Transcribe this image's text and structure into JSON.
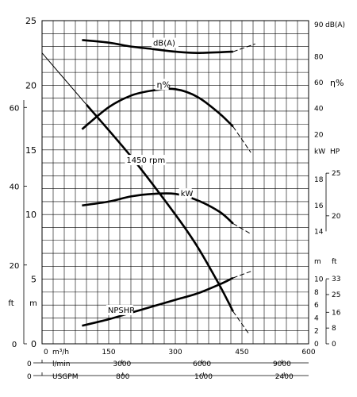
{
  "chart_data": {
    "type": "line",
    "title": "",
    "x": {
      "label_flow": "m³/h",
      "ticks_flow": [
        0,
        150,
        300,
        450,
        600
      ],
      "label_lmin": "l/min",
      "ticks_lmin": [
        0,
        3000,
        6000,
        9000
      ],
      "label_usgpm": "USGPM",
      "ticks_usgpm": [
        0,
        800,
        1600,
        2400
      ],
      "lim": [
        0,
        600
      ]
    },
    "left_axes": {
      "m_label": "m",
      "m_ticks": [
        0,
        5,
        10,
        15,
        20,
        25
      ],
      "ft_label": "ft",
      "ft_ticks": [
        0,
        20,
        40,
        60
      ],
      "m_lim": [
        0,
        25
      ]
    },
    "right_axes": {
      "dba_label": "dB(A)",
      "dba_ticks": [
        80,
        90
      ],
      "eff_label": "η%",
      "eff_ticks": [
        20,
        40,
        60
      ],
      "kw_label": "kW",
      "kw_ticks": [
        14,
        16,
        18
      ],
      "hp_label": "HP",
      "hp_ticks": [
        20,
        25
      ],
      "npsh_m_label": "m",
      "npsh_m_ticks": [
        0,
        2,
        4,
        6,
        8,
        10
      ],
      "npsh_ft_label": "ft",
      "npsh_ft_ticks": [
        0,
        8,
        16,
        25,
        33
      ]
    },
    "series": [
      {
        "name": "1450 rpm",
        "x": [
          0,
          100,
          200,
          300,
          350,
          400,
          430,
          465
        ],
        "y": [
          22.5,
          18.5,
          14.5,
          10.0,
          7.5,
          4.5,
          2.5,
          0.8
        ],
        "dash_from": 430
      },
      {
        "name": "dB(A)",
        "x": [
          90,
          150,
          200,
          250,
          300,
          350,
          430,
          480
        ],
        "y": [
          23.5,
          23.3,
          23.0,
          22.8,
          22.6,
          22.5,
          22.6,
          23.2
        ],
        "dash_from": 430
      },
      {
        "name": "η%",
        "x": [
          90,
          150,
          200,
          250,
          300,
          350,
          400,
          430,
          470
        ],
        "y": [
          16.6,
          18.3,
          19.2,
          19.6,
          19.7,
          19.1,
          17.8,
          16.8,
          14.8
        ],
        "dash_from": 430
      },
      {
        "name": "kW",
        "x": [
          90,
          150,
          200,
          250,
          300,
          350,
          400,
          430,
          470
        ],
        "y": [
          10.7,
          11.0,
          11.4,
          11.6,
          11.6,
          11.1,
          10.2,
          9.3,
          8.5
        ],
        "dash_from": 430
      },
      {
        "name": "NPSHR",
        "x": [
          90,
          150,
          200,
          250,
          300,
          350,
          400,
          430,
          470
        ],
        "y": [
          1.4,
          1.9,
          2.4,
          2.9,
          3.4,
          3.9,
          4.6,
          5.1,
          5.6
        ],
        "dash_from": 430
      }
    ],
    "labels": {
      "curve_rpm": "1450 rpm",
      "curve_dba": "dB(A)",
      "curve_eff": "η%",
      "curve_kw": "kW",
      "curve_npshr": "NPSHR"
    }
  }
}
